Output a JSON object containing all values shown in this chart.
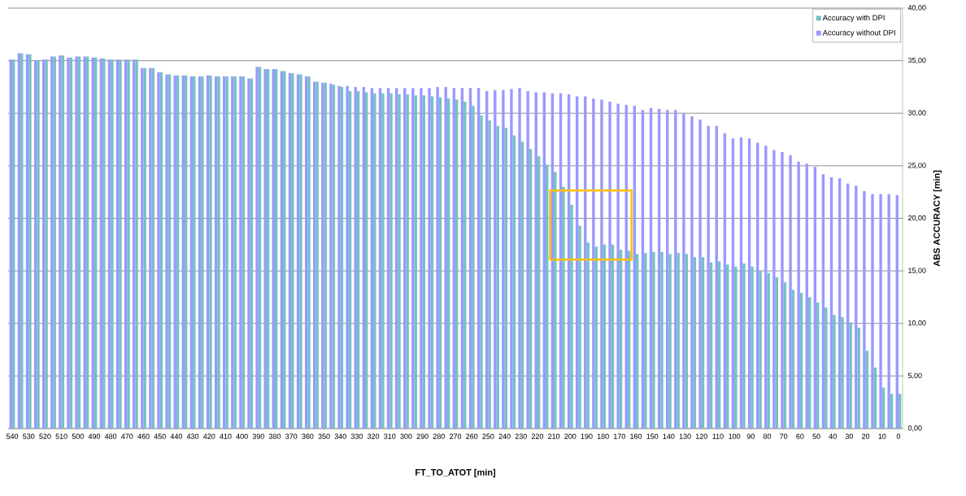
{
  "chart_data": {
    "type": "bar",
    "xlabel": "FT_TO_ATOT [min]",
    "ylabel": "ABS ACCURACY [min]",
    "categories": [
      "540",
      null,
      "530",
      null,
      "520",
      null,
      "510",
      null,
      "500",
      null,
      "490",
      null,
      "480",
      null,
      "470",
      null,
      "460",
      null,
      "450",
      null,
      "440",
      null,
      "430",
      null,
      "420",
      null,
      "410",
      null,
      "400",
      null,
      "390",
      null,
      "380",
      null,
      "370",
      null,
      "360",
      null,
      "350",
      null,
      "340",
      null,
      "330",
      null,
      "320",
      null,
      "310",
      null,
      "300",
      null,
      "290",
      null,
      "280",
      null,
      "270",
      null,
      "260",
      null,
      "250",
      null,
      "240",
      null,
      "230",
      null,
      "220",
      null,
      "210",
      null,
      "200",
      null,
      "190",
      null,
      "180",
      null,
      "170",
      null,
      "160",
      null,
      "150",
      null,
      "140",
      null,
      "130",
      null,
      "120",
      null,
      "110",
      null,
      "100",
      null,
      "90",
      null,
      "80",
      null,
      "70",
      null,
      "60",
      null,
      "50",
      null,
      "40",
      null,
      "30",
      null,
      "20",
      null,
      "10",
      null,
      "0"
    ],
    "series": [
      {
        "name": "Accuracy with DPI",
        "color": "#74c2c4",
        "values": [
          35.1,
          35.7,
          35.6,
          35.0,
          35.1,
          35.4,
          35.5,
          35.3,
          35.4,
          35.4,
          35.3,
          35.2,
          35.1,
          35.1,
          35.1,
          35.1,
          34.3,
          34.3,
          33.9,
          33.7,
          33.6,
          33.6,
          33.5,
          33.5,
          33.6,
          33.5,
          33.5,
          33.5,
          33.5,
          33.3,
          34.4,
          34.2,
          34.2,
          34.0,
          33.8,
          33.7,
          33.5,
          33.0,
          32.9,
          32.7,
          32.5,
          32.1,
          32.1,
          32.0,
          31.9,
          31.9,
          31.9,
          31.8,
          31.8,
          31.7,
          31.7,
          31.6,
          31.5,
          31.4,
          31.3,
          31.1,
          30.7,
          29.8,
          29.3,
          28.8,
          28.6,
          27.9,
          27.3,
          26.6,
          25.9,
          25.1,
          24.4,
          23.0,
          21.3,
          19.3,
          17.7,
          17.3,
          17.5,
          17.5,
          17.0,
          16.9,
          16.6,
          16.7,
          16.8,
          16.8,
          16.6,
          16.7,
          16.6,
          16.3,
          16.3,
          15.8,
          15.9,
          15.6,
          15.4,
          15.7,
          15.4,
          15.0,
          14.8,
          14.4,
          13.9,
          13.2,
          12.9,
          12.5,
          12.0,
          11.5,
          10.8,
          10.6,
          10.1,
          9.6,
          7.4,
          5.8,
          3.9,
          3.3,
          3.3
        ]
      },
      {
        "name": "Accuracy without DPI",
        "color": "#9999ff",
        "values": [
          35.1,
          35.7,
          35.6,
          35.0,
          35.1,
          35.4,
          35.5,
          35.3,
          35.4,
          35.4,
          35.3,
          35.2,
          35.1,
          35.1,
          35.1,
          35.1,
          34.3,
          34.3,
          33.9,
          33.7,
          33.6,
          33.6,
          33.5,
          33.5,
          33.6,
          33.5,
          33.5,
          33.5,
          33.5,
          33.3,
          34.4,
          34.2,
          34.2,
          34.0,
          33.8,
          33.7,
          33.5,
          33.0,
          32.9,
          32.8,
          32.6,
          32.6,
          32.5,
          32.5,
          32.4,
          32.4,
          32.4,
          32.4,
          32.4,
          32.4,
          32.4,
          32.4,
          32.5,
          32.5,
          32.4,
          32.4,
          32.4,
          32.4,
          32.1,
          32.2,
          32.2,
          32.3,
          32.4,
          32.1,
          32.0,
          32.0,
          31.9,
          31.9,
          31.8,
          31.6,
          31.6,
          31.4,
          31.3,
          31.1,
          30.9,
          30.8,
          30.7,
          30.3,
          30.5,
          30.4,
          30.3,
          30.3,
          30.0,
          29.7,
          29.4,
          28.8,
          28.8,
          28.1,
          27.6,
          27.7,
          27.6,
          27.2,
          26.9,
          26.5,
          26.3,
          26.0,
          25.4,
          25.2,
          24.9,
          24.2,
          23.9,
          23.8,
          23.3,
          23.1,
          22.6,
          22.3,
          22.3,
          22.3,
          22.2
        ]
      }
    ],
    "ylim": [
      0,
      40
    ],
    "yticks": [
      {
        "value": 0,
        "label": "0,00"
      },
      {
        "value": 5,
        "label": "5,00"
      },
      {
        "value": 10,
        "label": "10,00"
      },
      {
        "value": 15,
        "label": "15,00"
      },
      {
        "value": 20,
        "label": "20,00"
      },
      {
        "value": 25,
        "label": "25,00"
      },
      {
        "value": 30,
        "label": "30,00"
      },
      {
        "value": 35,
        "label": "35,00"
      },
      {
        "value": 40,
        "label": "40,00"
      }
    ],
    "grid": "y",
    "legend": "top right"
  }
}
